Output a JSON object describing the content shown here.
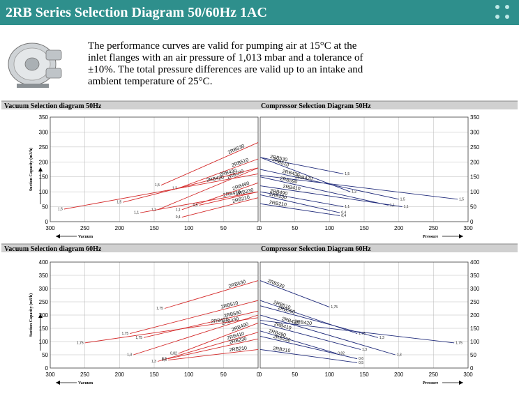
{
  "header": {
    "title": "2RB Series Selection Diagram 50/60Hz 1AC"
  },
  "intro": {
    "text": "The performance curves are valid for pumping air at 15°C at the inlet flanges with an air pressure of 1,013 mbar and a tolerance of ±10%. The total pressure differences are valid up to an intake and ambient temperature of 25°C."
  },
  "colors": {
    "header": "#2e8f8c",
    "vacuum_curve": "#d42a2a",
    "pressure_curve": "#1f2a7a",
    "grid": "#b8b8b8"
  },
  "chart_data": [
    {
      "type": "line",
      "title": "Vacuum Selection diagram 50Hz",
      "ylabel": "Suction Capacity (m3/h)",
      "xlabel": "Vacuum",
      "xlim": [
        300,
        0
      ],
      "ylim": [
        0,
        350
      ],
      "xticks": [
        300,
        250,
        200,
        150,
        100,
        50,
        0
      ],
      "yticks": [
        0,
        50,
        100,
        150,
        200,
        250,
        300,
        350
      ],
      "grid": true,
      "series": [
        {
          "name": "2RB530",
          "end_label": "1,5",
          "points": [
            [
              140,
              122
            ],
            [
              0,
              265
            ]
          ]
        },
        {
          "name": "2RB510",
          "end_label": "1,2",
          "points": [
            [
              115,
              112
            ],
            [
              0,
              210
            ]
          ]
        },
        {
          "name": "2RB590",
          "end_label": "1,1",
          "points": [
            [
              145,
              40
            ],
            [
              0,
              180
            ]
          ]
        },
        {
          "name": "2RB430",
          "end_label": "1,5",
          "points": [
            [
              195,
              65
            ],
            [
              0,
              180
            ]
          ]
        },
        {
          "name": "2RB420",
          "end_label": "1,5",
          "points": [
            [
              280,
              42
            ],
            [
              0,
              160
            ]
          ]
        },
        {
          "name": "2RB410",
          "end_label": "1,1",
          "points": [
            [
              170,
              30
            ],
            [
              0,
              100
            ]
          ]
        },
        {
          "name": "2RB490",
          "end_label": "1,1",
          "points": [
            [
              110,
              40
            ],
            [
              0,
              130
            ]
          ]
        },
        {
          "name": "2RB230",
          "end_label": "0,5",
          "points": [
            [
              85,
              55
            ],
            [
              0,
              100
            ]
          ]
        },
        {
          "name": "2RB210",
          "end_label": "0,4",
          "points": [
            [
              110,
              15
            ],
            [
              0,
              80
            ]
          ]
        }
      ]
    },
    {
      "type": "line",
      "title": "Compressor Selection Diagram 50Hz",
      "ylabel": "",
      "xlabel": "Pressure",
      "xlim": [
        0,
        300
      ],
      "ylim": [
        0,
        350
      ],
      "xticks": [
        0,
        50,
        100,
        150,
        200,
        250,
        300
      ],
      "yticks": [
        0,
        50,
        100,
        150,
        200,
        250,
        300,
        350
      ],
      "grid": true,
      "series": [
        {
          "name": "2RB530",
          "end_label": "1,5",
          "points": [
            [
              0,
              215
            ],
            [
              120,
              160
            ]
          ]
        },
        {
          "name": "2RB510",
          "end_label": "1,2",
          "points": [
            [
              0,
              215
            ],
            [
              130,
              100
            ]
          ]
        },
        {
          "name": "2RB590",
          "end_label": "1,1",
          "points": [
            [
              0,
              150
            ],
            [
              185,
              55
            ]
          ]
        },
        {
          "name": "2RB430",
          "end_label": "1,5",
          "points": [
            [
              0,
              175
            ],
            [
              200,
              75
            ]
          ]
        },
        {
          "name": "2RB420",
          "end_label": "1,5",
          "points": [
            [
              0,
              155
            ],
            [
              285,
              75
            ]
          ]
        },
        {
          "name": "2RB410",
          "end_label": "1,1",
          "points": [
            [
              0,
              120
            ],
            [
              205,
              50
            ]
          ]
        },
        {
          "name": "2RB490",
          "end_label": "1,1",
          "points": [
            [
              0,
              100
            ],
            [
              120,
              50
            ]
          ]
        },
        {
          "name": "2RB230",
          "end_label": "0,4",
          "points": [
            [
              0,
              90
            ],
            [
              115,
              30
            ]
          ]
        },
        {
          "name": "2RB210",
          "end_label": "0,4",
          "points": [
            [
              0,
              60
            ],
            [
              115,
              20
            ]
          ]
        }
      ]
    },
    {
      "type": "line",
      "title": "Vacuum Selection diagram 60Hz",
      "ylabel": "Suction Capacity (m3/h)",
      "xlabel": "Vacuum",
      "xlim": [
        300,
        0
      ],
      "ylim": [
        0,
        400
      ],
      "xticks": [
        300,
        250,
        200,
        150,
        100,
        50,
        0
      ],
      "yticks": [
        0,
        50,
        100,
        150,
        200,
        250,
        300,
        350,
        400
      ],
      "grid": true,
      "series": [
        {
          "name": "2RB530",
          "end_label": "1,75",
          "points": [
            [
              135,
              225
            ],
            [
              0,
              330
            ]
          ]
        },
        {
          "name": "2RB510",
          "end_label": "1,75",
          "points": [
            [
              185,
              130
            ],
            [
              0,
              255
            ]
          ]
        },
        {
          "name": "2RB590",
          "end_label": "1,75",
          "points": [
            [
              165,
              115
            ],
            [
              0,
              215
            ]
          ]
        },
        {
          "name": "2RB430",
          "end_label": "1,3",
          "points": [
            [
              180,
              50
            ],
            [
              0,
              200
            ]
          ]
        },
        {
          "name": "2RB420",
          "end_label": "1,75",
          "points": [
            [
              250,
              95
            ],
            [
              0,
              190
            ]
          ]
        },
        {
          "name": "2RB410",
          "end_label": "1,3",
          "points": [
            [
              145,
              25
            ],
            [
              0,
              135
            ]
          ]
        },
        {
          "name": "2RB490",
          "end_label": "0,82",
          "points": [
            [
              115,
              55
            ],
            [
              0,
              170
            ]
          ]
        },
        {
          "name": "2RB230",
          "end_label": "0,6",
          "points": [
            [
              130,
              35
            ],
            [
              0,
              110
            ]
          ]
        },
        {
          "name": "2RB210",
          "end_label": "0,5",
          "points": [
            [
              130,
              30
            ],
            [
              0,
              70
            ]
          ]
        }
      ]
    },
    {
      "type": "line",
      "title": "Compressor Selection Diagram 60Hz",
      "ylabel": "",
      "xlabel": "Pressure",
      "xlim": [
        0,
        300
      ],
      "ylim": [
        0,
        400
      ],
      "xticks": [
        0,
        50,
        100,
        150,
        200,
        250,
        300
      ],
      "yticks": [
        0,
        50,
        100,
        150,
        200,
        250,
        300,
        350,
        400
      ],
      "grid": true,
      "series": [
        {
          "name": "2RB530",
          "end_label": "1,75",
          "points": [
            [
              0,
              330
            ],
            [
              100,
              230
            ]
          ]
        },
        {
          "name": "2RB510",
          "end_label": "1,75",
          "points": [
            [
              0,
              255
            ],
            [
              140,
              130
            ]
          ]
        },
        {
          "name": "2RB590",
          "end_label": "1,3",
          "points": [
            [
              0,
              235
            ],
            [
              170,
              115
            ]
          ]
        },
        {
          "name": "2RB430",
          "end_label": "1,3",
          "points": [
            [
              0,
              200
            ],
            [
              195,
              50
            ]
          ]
        },
        {
          "name": "2RB420",
          "end_label": "1,75",
          "points": [
            [
              0,
              180
            ],
            [
              280,
              95
            ]
          ]
        },
        {
          "name": "2RB410",
          "end_label": "1,3",
          "points": [
            [
              0,
              170
            ],
            [
              145,
              70
            ]
          ]
        },
        {
          "name": "2RB490",
          "end_label": "0,82",
          "points": [
            [
              0,
              140
            ],
            [
              110,
              55
            ]
          ]
        },
        {
          "name": "2RB230",
          "end_label": "0,6",
          "points": [
            [
              0,
              120
            ],
            [
              140,
              35
            ]
          ]
        },
        {
          "name": "2RB210",
          "end_label": "0,5",
          "points": [
            [
              0,
              70
            ],
            [
              140,
              20
            ]
          ]
        }
      ]
    }
  ]
}
